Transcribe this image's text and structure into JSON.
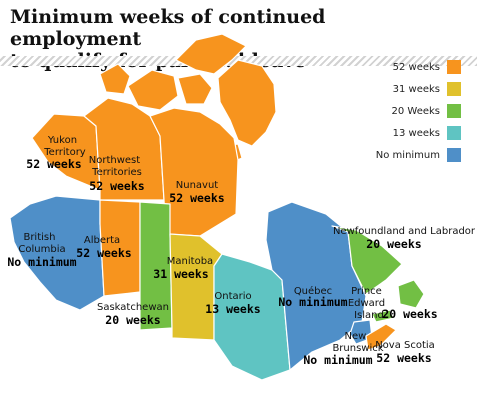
{
  "title_lines": [
    "Minimum weeks of continued employment",
    "to qualify for parental leave"
  ],
  "colors": {
    "orange": "#f7941e",
    "yellow": "#e0c12c",
    "green": "#72bf44",
    "teal": "#5fc4c2",
    "blue": "#4f8fc8",
    "arctic_orange": "#f7941e"
  },
  "legend": [
    {
      "label": "52 weeks",
      "color": "#f7941e"
    },
    {
      "label": "31 weeks",
      "color": "#e0c12c"
    },
    {
      "label": "20 Weeks",
      "color": "#72bf44"
    },
    {
      "label": "13 weeks",
      "color": "#5fc4c2"
    },
    {
      "label": "No minimum",
      "color": "#4f8fc8"
    }
  ],
  "regions": {
    "yukon": {
      "name_lines": [
        "Yukon",
        "Territory"
      ],
      "value": "52 weeks",
      "color": "#f7941e"
    },
    "nwt": {
      "name_lines": [
        "Northwest",
        "Territories"
      ],
      "value": "52 weeks",
      "color": "#f7941e"
    },
    "nunavut": {
      "name_lines": [
        "Nunavut"
      ],
      "value": "52 weeks",
      "color": "#f7941e"
    },
    "bc": {
      "name_lines": [
        "British",
        "Columbia"
      ],
      "value": "No minimum",
      "color": "#4f8fc8"
    },
    "alberta": {
      "name_lines": [
        "Alberta"
      ],
      "value": "52 weeks",
      "color": "#f7941e"
    },
    "saskatchewan": {
      "name_lines": [
        "Saskatchewan"
      ],
      "value": "20 weeks",
      "color": "#72bf44"
    },
    "manitoba": {
      "name_lines": [
        "Manitoba"
      ],
      "value": "31 weeks",
      "color": "#e0c12c"
    },
    "ontario": {
      "name_lines": [
        "Ontario"
      ],
      "value": "13 weeks",
      "color": "#5fc4c2"
    },
    "quebec": {
      "name_lines": [
        "Québec"
      ],
      "value": "No minimum",
      "color": "#4f8fc8"
    },
    "newfoundland": {
      "name_lines": [
        "Newfoundland and Labrador"
      ],
      "value": "20 weeks",
      "color": "#72bf44"
    },
    "pei": {
      "name_lines": [
        "Prince",
        "Edward",
        "Island"
      ],
      "value": "20 weeks",
      "color": "#72bf44"
    },
    "new_brunswick": {
      "name_lines": [
        "New",
        "Brunswick"
      ],
      "value": "No minimum",
      "color": "#4f8fc8"
    },
    "nova_scotia": {
      "name_lines": [
        "Nova Scotia"
      ],
      "value": "52 weeks",
      "color": "#f7941e"
    }
  }
}
